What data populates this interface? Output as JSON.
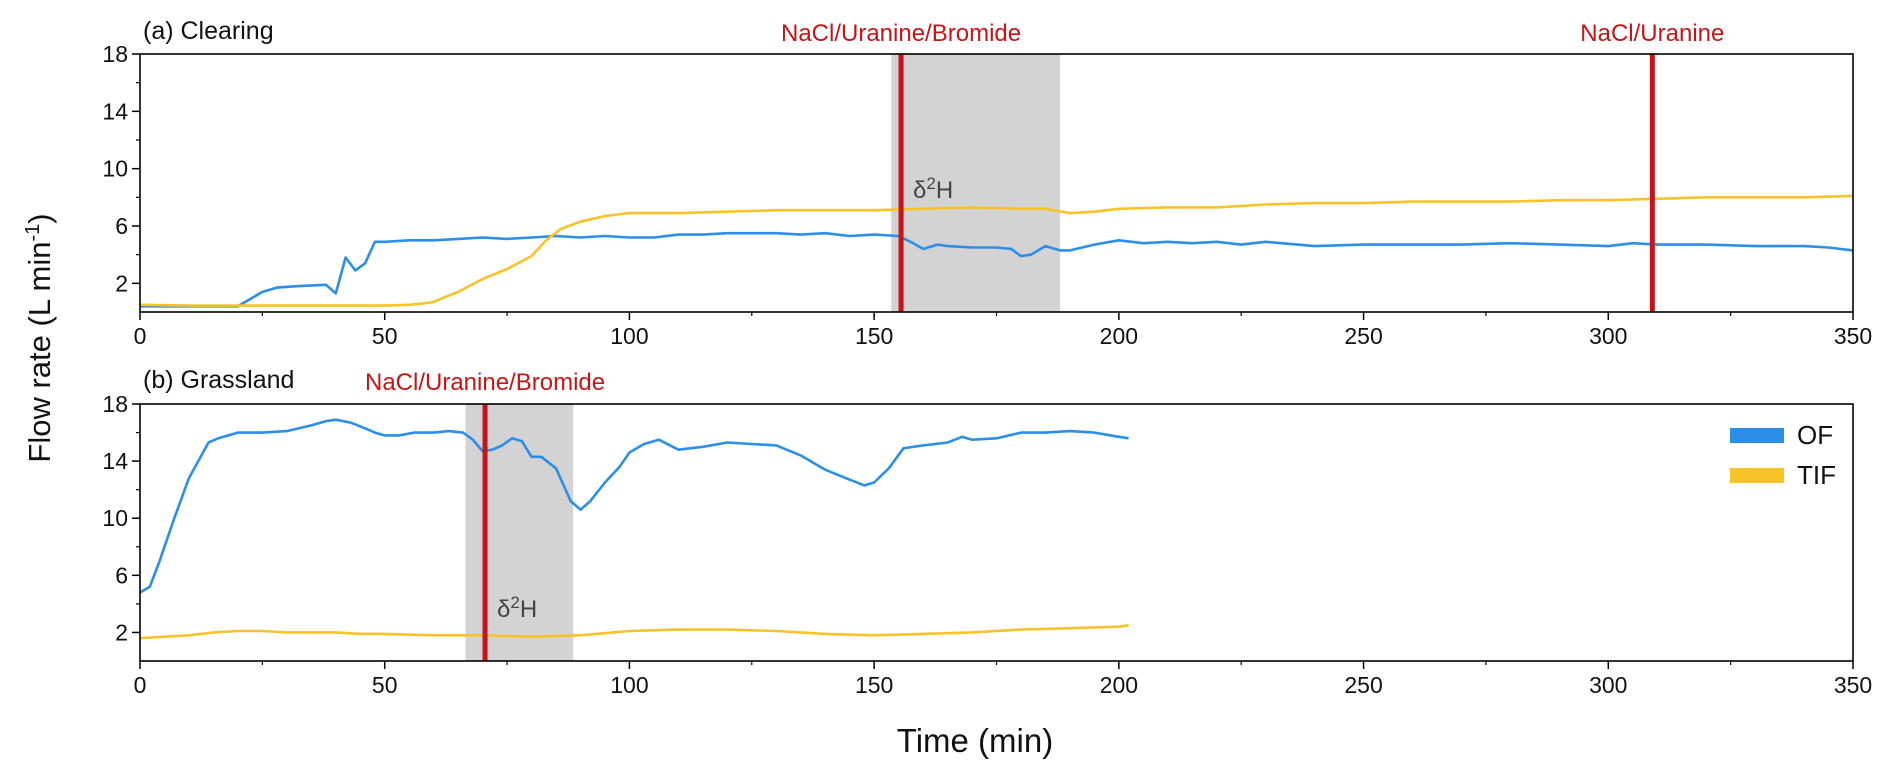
{
  "figure": {
    "ylabel_main": "Flow rate (L min",
    "ylabel_exp": "-1",
    "ylabel_close": ")",
    "xlabel": "Time (min)",
    "legend": [
      {
        "name": "OF",
        "color": "#2b8fe8"
      },
      {
        "name": "TIF",
        "color": "#f7c328"
      }
    ]
  },
  "chart_data": [
    {
      "type": "line",
      "title": "(a) Clearing",
      "xlim": [
        0,
        350
      ],
      "ylim": [
        0,
        18
      ],
      "xticks": [
        0,
        50,
        100,
        150,
        200,
        250,
        300,
        350
      ],
      "yticks": [
        2,
        6,
        10,
        14,
        18
      ],
      "shaded_region": {
        "x": [
          153.5,
          188
        ]
      },
      "shaded_label": {
        "base": "δ",
        "sup": "2",
        "after": "H"
      },
      "markers": [
        {
          "x": 155.5,
          "label": "NaCl/Uranine/Bromide"
        },
        {
          "x": 309,
          "label": "NaCl/Uranine"
        }
      ],
      "series": [
        {
          "name": "OF",
          "color": "#2b8fe8",
          "x": [
            0,
            10,
            20,
            22,
            25,
            28,
            32,
            38,
            40,
            42,
            44,
            46,
            48,
            50,
            55,
            60,
            65,
            70,
            75,
            80,
            85,
            90,
            95,
            100,
            105,
            110,
            115,
            120,
            125,
            130,
            135,
            140,
            145,
            150,
            155,
            158,
            160,
            163,
            165,
            170,
            175,
            178,
            180,
            182,
            185,
            188,
            190,
            195,
            200,
            205,
            210,
            215,
            220,
            225,
            230,
            240,
            250,
            260,
            270,
            280,
            290,
            300,
            305,
            310,
            320,
            330,
            340,
            345,
            350
          ],
          "y": [
            0.4,
            0.4,
            0.4,
            0.8,
            1.4,
            1.7,
            1.8,
            1.9,
            1.3,
            3.8,
            2.9,
            3.4,
            4.9,
            4.9,
            5.0,
            5.0,
            5.1,
            5.2,
            5.1,
            5.2,
            5.3,
            5.2,
            5.3,
            5.2,
            5.2,
            5.4,
            5.4,
            5.5,
            5.5,
            5.5,
            5.4,
            5.5,
            5.3,
            5.4,
            5.3,
            4.8,
            4.4,
            4.7,
            4.6,
            4.5,
            4.5,
            4.4,
            3.9,
            4.0,
            4.6,
            4.3,
            4.3,
            4.7,
            5.0,
            4.8,
            4.9,
            4.8,
            4.9,
            4.7,
            4.9,
            4.6,
            4.7,
            4.7,
            4.7,
            4.8,
            4.7,
            4.6,
            4.8,
            4.7,
            4.7,
            4.6,
            4.6,
            4.5,
            4.3
          ]
        },
        {
          "name": "TIF",
          "color": "#f7c328",
          "x": [
            0,
            10,
            20,
            30,
            40,
            50,
            55,
            58,
            60,
            62,
            65,
            70,
            75,
            80,
            83,
            86,
            90,
            95,
            100,
            110,
            120,
            130,
            140,
            150,
            160,
            170,
            180,
            185,
            190,
            195,
            200,
            210,
            220,
            230,
            240,
            250,
            260,
            270,
            280,
            290,
            300,
            310,
            320,
            330,
            340,
            350
          ],
          "y": [
            0.5,
            0.45,
            0.45,
            0.45,
            0.45,
            0.45,
            0.5,
            0.6,
            0.7,
            1.0,
            1.4,
            2.3,
            3.0,
            3.9,
            5.0,
            5.8,
            6.3,
            6.7,
            6.9,
            6.9,
            7.0,
            7.1,
            7.1,
            7.1,
            7.2,
            7.3,
            7.2,
            7.2,
            6.9,
            7.0,
            7.2,
            7.3,
            7.3,
            7.5,
            7.6,
            7.6,
            7.7,
            7.7,
            7.7,
            7.8,
            7.8,
            7.9,
            8.0,
            8.0,
            8.0,
            8.1
          ]
        }
      ]
    },
    {
      "type": "line",
      "title": "(b) Grassland",
      "xlim": [
        0,
        350
      ],
      "ylim": [
        0,
        18
      ],
      "xticks": [
        0,
        50,
        100,
        150,
        200,
        250,
        300,
        350
      ],
      "yticks": [
        2,
        6,
        10,
        14,
        18
      ],
      "shaded_region": {
        "x": [
          66.5,
          88.5
        ]
      },
      "shaded_label": {
        "base": "δ",
        "sup": "2",
        "after": "H"
      },
      "markers": [
        {
          "x": 70.5,
          "label": "NaCl/Uranine/Bromide"
        }
      ],
      "series": [
        {
          "name": "OF",
          "color": "#2b8fe8",
          "x": [
            0,
            2,
            4,
            7,
            10,
            14,
            16,
            20,
            25,
            30,
            35,
            38,
            40,
            43,
            46,
            48,
            50,
            53,
            56,
            60,
            63,
            66,
            68,
            70,
            72,
            74,
            76,
            78,
            80,
            82,
            85,
            88,
            90,
            92,
            95,
            98,
            100,
            103,
            106,
            110,
            115,
            120,
            125,
            130,
            135,
            140,
            145,
            148,
            150,
            153,
            156,
            160,
            165,
            168,
            170,
            175,
            180,
            185,
            190,
            195,
            200,
            202
          ],
          "y": [
            4.8,
            5.2,
            7.0,
            10.0,
            12.8,
            15.3,
            15.6,
            16.0,
            16.0,
            16.1,
            16.5,
            16.8,
            16.9,
            16.7,
            16.3,
            16.0,
            15.8,
            15.8,
            16.0,
            16.0,
            16.1,
            16.0,
            15.5,
            14.7,
            14.8,
            15.1,
            15.6,
            15.4,
            14.3,
            14.3,
            13.5,
            11.2,
            10.6,
            11.2,
            12.5,
            13.6,
            14.6,
            15.2,
            15.5,
            14.8,
            15.0,
            15.3,
            15.2,
            15.1,
            14.4,
            13.4,
            12.7,
            12.3,
            12.5,
            13.5,
            14.9,
            15.1,
            15.3,
            15.7,
            15.5,
            15.6,
            16.0,
            16.0,
            16.1,
            16.0,
            15.7,
            15.6
          ]
        },
        {
          "name": "TIF",
          "color": "#f7c328",
          "x": [
            0,
            5,
            10,
            15,
            20,
            25,
            30,
            40,
            45,
            50,
            60,
            70,
            80,
            90,
            100,
            110,
            120,
            130,
            140,
            150,
            160,
            170,
            180,
            190,
            200,
            202
          ],
          "y": [
            1.6,
            1.7,
            1.8,
            2.0,
            2.1,
            2.1,
            2.0,
            2.0,
            1.9,
            1.9,
            1.8,
            1.8,
            1.7,
            1.8,
            2.1,
            2.2,
            2.2,
            2.1,
            1.9,
            1.8,
            1.9,
            2.0,
            2.2,
            2.3,
            2.4,
            2.5
          ]
        }
      ]
    }
  ]
}
